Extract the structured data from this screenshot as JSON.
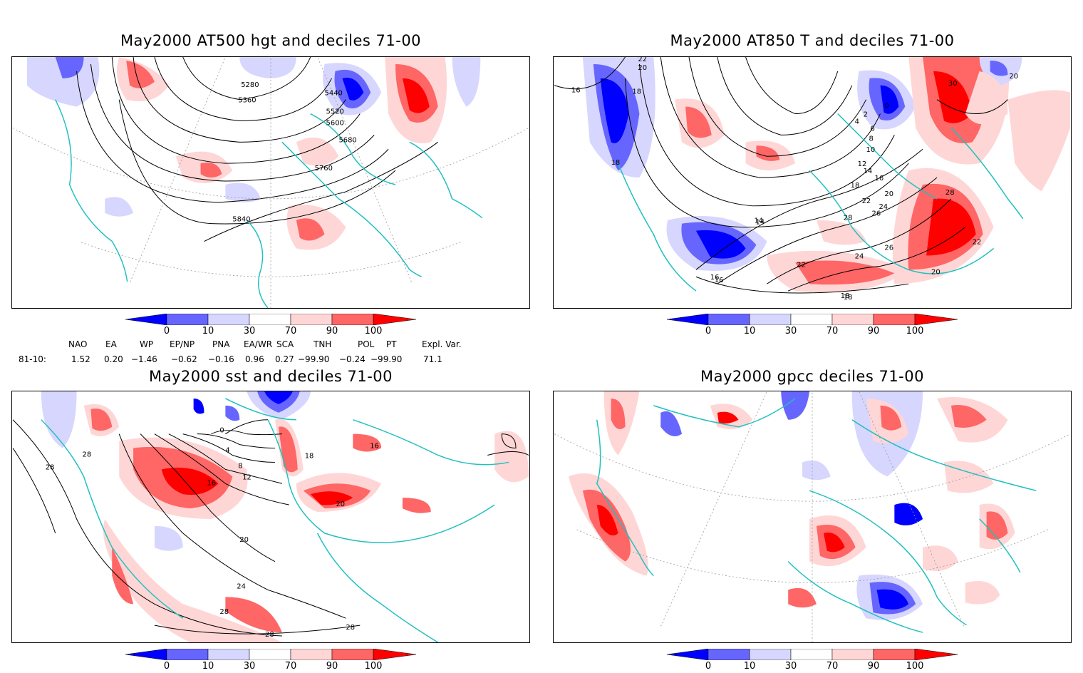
{
  "panels": [
    {
      "id": "p1",
      "title": "May2000 AT500 hgt and deciles 71-00",
      "contour_labels": [
        "5280",
        "5360",
        "5440",
        "5520",
        "5600",
        "5680",
        "5760",
        "5840"
      ]
    },
    {
      "id": "p2",
      "title": "May2000 AT850 T and deciles 71-00",
      "contour_labels": [
        "22",
        "20",
        "16",
        "18",
        "18",
        "14",
        "16",
        "18",
        "28",
        "30",
        "20",
        "0",
        "2",
        "4",
        "6",
        "8",
        "10",
        "12",
        "14",
        "16",
        "18",
        "20",
        "22",
        "24",
        "26",
        "28",
        "26",
        "24",
        "22",
        "20",
        "18",
        "22",
        "14",
        "16"
      ]
    },
    {
      "id": "p3",
      "title": "May2000 sst and deciles 71-00",
      "contour_labels": [
        "28",
        "28",
        "0",
        "4",
        "8",
        "12",
        "16",
        "18",
        "16",
        "20",
        "20",
        "24",
        "28",
        "28",
        "28"
      ]
    },
    {
      "id": "p4",
      "title": "May2000 gpcc deciles 71-00",
      "contour_labels": []
    }
  ],
  "colorbar": {
    "labels": [
      "0",
      "10",
      "30",
      "70",
      "90",
      "100"
    ],
    "colors": [
      "#0000ff",
      "#6666ff",
      "#d6d6ff",
      "#ffffff",
      "#ffd6d6",
      "#ff6666",
      "#ff0000"
    ]
  },
  "indices": {
    "headers": [
      "NAO",
      "EA",
      "WP",
      "EP/NP",
      "PNA",
      "EA/WR",
      "SCA",
      "TNH",
      "POL",
      "PT",
      "Expl. Var."
    ],
    "row_label": "81-10:",
    "values": [
      "1.52",
      "0.20",
      "−1.46",
      "−0.62",
      "−0.16",
      "0.96",
      "0.27",
      "−99.90",
      "−0.24",
      "−99.90",
      "71.1"
    ]
  }
}
